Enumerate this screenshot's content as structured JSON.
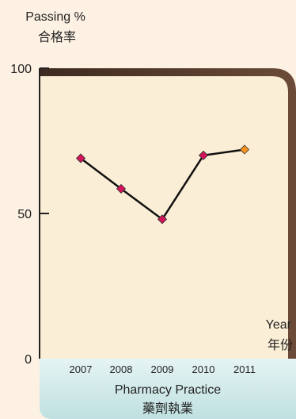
{
  "chart_data": {
    "type": "line",
    "ylabel": [
      "Passing %",
      "合格率"
    ],
    "xlabel": [
      "Year",
      "年份"
    ],
    "xtick_labels": [
      "2007",
      "2008",
      "2009",
      "2010",
      "2011"
    ],
    "ylim": [
      0,
      100
    ],
    "yticks": [
      0,
      50,
      100
    ],
    "series": [
      {
        "values": [
          69,
          58.5,
          48,
          70,
          72
        ],
        "point_colors": [
          "#d4145a",
          "#d4145a",
          "#d4145a",
          "#d4145a",
          "#f7931e"
        ]
      }
    ],
    "category_label": [
      "Pharmacy Practice",
      "藥劑執業"
    ],
    "colors": {
      "page_bg": "#fdf1e3",
      "plot_bg": "#fbeed6",
      "plot_shadow": "#5a3e2e",
      "band": "#d6ecec",
      "line": "#111111"
    }
  }
}
